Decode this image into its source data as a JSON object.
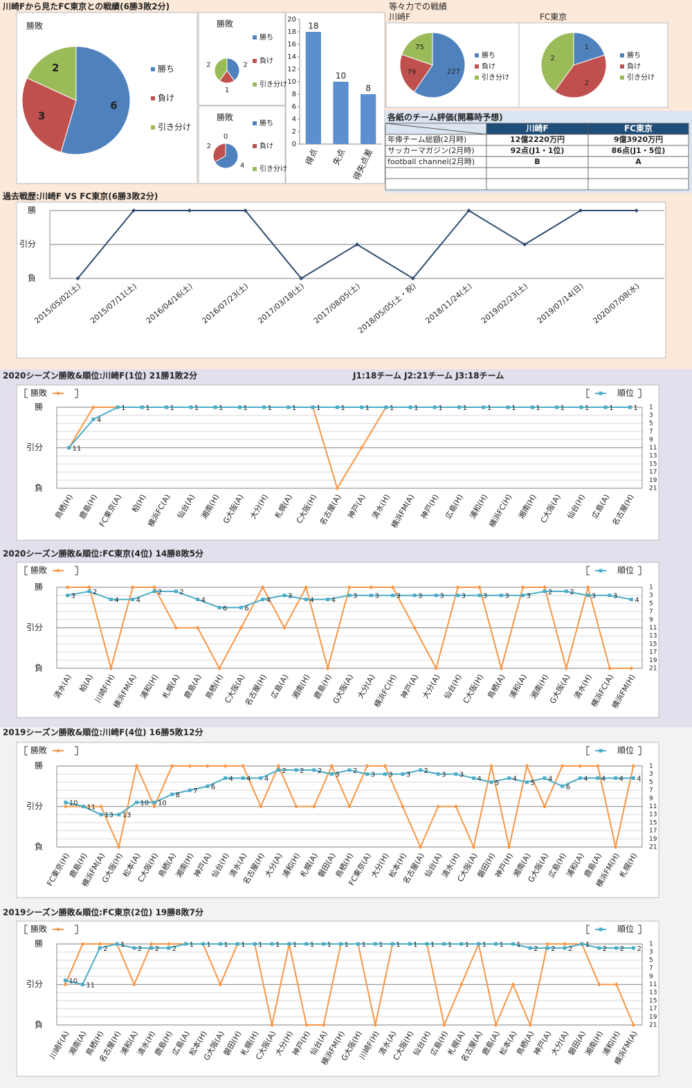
{
  "header": {
    "title": "川崎Fから見たFC東京との戦績(6勝3敗2分)"
  },
  "table": {
    "title": "各紙のチーム評価(開幕時予想)",
    "columns": [
      "川崎F",
      "FC東京"
    ],
    "rows": [
      {
        "label": "年俸チーム総額(2月時)",
        "cells": [
          "12億2220万円",
          "9億3920万円"
        ]
      },
      {
        "label": "サッカーマガジン(2月時)",
        "cells": [
          "92点(J1・1位)",
          "86点(J1・5位)"
        ]
      },
      {
        "label": "football channel(2月時)",
        "cells": [
          "B",
          "A"
        ]
      }
    ]
  },
  "chart_data": [
    {
      "type": "pie",
      "title": "勝敗",
      "categories": [
        "勝ち",
        "負け",
        "引き分け"
      ],
      "values": [
        6,
        3,
        2
      ],
      "colors": [
        "#4f81bd",
        "#c0504d",
        "#9bbb59"
      ]
    },
    {
      "type": "pie",
      "title": "勝敗",
      "categories": [
        "勝ち",
        "負け",
        "引き分け"
      ],
      "values": [
        2,
        1,
        2
      ],
      "colors": [
        "#4f81bd",
        "#c0504d",
        "#9bbb59"
      ]
    },
    {
      "type": "pie",
      "title": "勝敗",
      "categories": [
        "勝ち",
        "負け",
        "引き分け"
      ],
      "values": [
        4,
        2,
        0
      ],
      "colors": [
        "#4f81bd",
        "#c0504d",
        "#9bbb59"
      ]
    },
    {
      "type": "bar",
      "categories": [
        "得点",
        "失点",
        "得失点差"
      ],
      "values": [
        18,
        10,
        8
      ],
      "color": "#5b8fd0",
      "ylim": [
        0,
        20
      ],
      "yticks": [
        0,
        2,
        4,
        6,
        8,
        10,
        12,
        14,
        16,
        18,
        20
      ],
      "grid": false
    },
    {
      "type": "pie",
      "title": "等々力での戦績",
      "subtitle": "川崎F",
      "categories": [
        "勝ち",
        "負け",
        "引き分け"
      ],
      "values": [
        227,
        79,
        75
      ],
      "colors": [
        "#4f81bd",
        "#c0504d",
        "#9bbb59"
      ]
    },
    {
      "type": "pie",
      "subtitle": "FC東京",
      "categories": [
        "勝ち",
        "負け",
        "引き分け"
      ],
      "values": [
        1,
        2,
        2
      ],
      "colors": [
        "#4f81bd",
        "#c0504d",
        "#9bbb59"
      ]
    },
    {
      "type": "line",
      "title": "過去戦歴:川崎F VS FC東京(6勝3敗2分)",
      "categories": [
        "2015/05/02(土)",
        "2015/07/11(土)",
        "2016/04/16(土)",
        "2016/07/23(土)",
        "2017/03/18(土)",
        "2017/08/05(土)",
        "2018/05/05(土・祝)",
        "2018/11/24(土)",
        "2019/02/23(土)",
        "2019/07/14(日)",
        "2020/07/08(水)"
      ],
      "series": [
        {
          "color": "#2f4b6e",
          "values": [
            -1,
            1,
            1,
            1,
            -1,
            0,
            -1,
            1,
            0,
            1,
            1
          ]
        }
      ],
      "ylim": [
        -1,
        1
      ],
      "yticks": [
        {
          "value": -1,
          "label": "負"
        },
        {
          "value": 0,
          "label": "引分"
        },
        {
          "value": 1,
          "label": "勝"
        }
      ],
      "grid": true
    },
    {
      "type": "line",
      "title": "2020シーズン勝敗&順位:川崎F(1位) 21勝1敗2分",
      "annotation": "J1:18チーム J2:21チーム J3:18チーム",
      "categories": [
        "鳥栖(H)",
        "鹿島(H)",
        "FC東京(A)",
        "柏(H)",
        "横浜FC(A)",
        "仙台(A)",
        "湘南(H)",
        "G大阪(A)",
        "大分(H)",
        "札幌(A)",
        "C大阪(H)",
        "名古屋(A)",
        "神戸(A)",
        "清水(H)",
        "横浜FM(A)",
        "神戸(H)",
        "広島(H)",
        "浦和(H)",
        "横浜FC(H)",
        "湘南(H)",
        "C大阪(A)",
        "仙台(H)",
        "広島(A)",
        "名古屋(H)"
      ],
      "series": [
        {
          "name": "勝敗",
          "color": "#f79646",
          "values": [
            0,
            1,
            1,
            1,
            1,
            1,
            1,
            1,
            1,
            1,
            1,
            -1,
            0,
            1,
            1,
            1,
            1,
            1,
            1,
            1,
            1,
            1,
            1,
            1
          ]
        },
        {
          "name": "順位",
          "color": "#4bacc6",
          "axis": "y2",
          "values": [
            11,
            4,
            1,
            1,
            1,
            1,
            1,
            1,
            1,
            1,
            1,
            1,
            1,
            1,
            1,
            1,
            1,
            1,
            1,
            1,
            1,
            1,
            1,
            1
          ]
        }
      ],
      "ylim": [
        -1,
        1
      ],
      "yticks": [
        {
          "value": -1,
          "label": "負"
        },
        {
          "value": 0,
          "label": "引分"
        },
        {
          "value": 1,
          "label": "勝"
        }
      ],
      "y2lim": [
        21,
        1
      ],
      "y2ticks": [
        1,
        3,
        5,
        7,
        9,
        11,
        13,
        15,
        17,
        19,
        21
      ],
      "grid": true
    },
    {
      "type": "line",
      "title": "2020シーズン勝敗&順位:FC東京(4位) 14勝8敗5分",
      "categories": [
        "清水(A)",
        "柏(A)",
        "川崎F(H)",
        "横浜FM(A)",
        "浦和(H)",
        "札幌(A)",
        "鹿島(A)",
        "鳥栖(H)",
        "C大阪(A)",
        "名古屋(H)",
        "広島(A)",
        "湘南(H)",
        "鹿島(H)",
        "G大阪(A)",
        "大分(A)",
        "横浜FC(H)",
        "神戸(A)",
        "大分(A)",
        "仙台(H)",
        "C大阪(H)",
        "鳥栖(A)",
        "浦和(A)",
        "湘南(H)",
        "G大阪(A)",
        "清水(H)",
        "横浜FC(A)",
        "横浜FM(H)"
      ],
      "series": [
        {
          "name": "勝敗",
          "color": "#f79646",
          "values": [
            1,
            1,
            -1,
            1,
            1,
            0,
            0,
            -1,
            0,
            1,
            0,
            1,
            -1,
            1,
            1,
            1,
            0,
            -1,
            1,
            1,
            -1,
            1,
            1,
            -1,
            1,
            -1,
            -1
          ]
        },
        {
          "name": "順位",
          "color": "#4bacc6",
          "axis": "y2",
          "values": [
            3,
            2,
            4,
            4,
            2,
            2,
            4,
            6,
            6,
            4,
            3,
            4,
            4,
            3,
            3,
            3,
            3,
            3,
            3,
            3,
            3,
            3,
            2,
            2,
            3,
            3,
            4
          ]
        }
      ],
      "ylim": [
        -1,
        1
      ],
      "yticks": [
        {
          "value": -1,
          "label": "負"
        },
        {
          "value": 0,
          "label": "引分"
        },
        {
          "value": 1,
          "label": "勝"
        }
      ],
      "y2lim": [
        21,
        1
      ],
      "y2ticks": [
        1,
        3,
        5,
        7,
        9,
        11,
        13,
        15,
        17,
        19,
        21
      ],
      "grid": true
    },
    {
      "type": "line",
      "title": "2019シーズン勝敗&順位:川崎F(4位) 16勝5敗12分",
      "categories": [
        "FC東京(H)",
        "鹿島(H)",
        "横浜FM(A)",
        "G大阪(H)",
        "松本(A)",
        "C大阪(H)",
        "鳥栖(A)",
        "湘南(H)",
        "神戸(A)",
        "仙台(H)",
        "清水(A)",
        "名古屋(H)",
        "大分(A)",
        "浦和(H)",
        "札幌(A)",
        "磐田(A)",
        "鳥栖(H)",
        "FC東京(A)",
        "大分(H)",
        "松本(H)",
        "名古屋(A)",
        "仙台(A)",
        "清水(H)",
        "C大阪(A)",
        "磐田(H)",
        "神戸(H)",
        "湘南(A)",
        "G大阪(A)",
        "広島(H)",
        "浦和(A)",
        "鹿島(A)",
        "横浜FM(H)",
        "札幌(H)"
      ],
      "series": [
        {
          "name": "勝敗",
          "color": "#f79646",
          "values": [
            0,
            0,
            0,
            -1,
            1,
            0,
            1,
            1,
            1,
            1,
            1,
            0,
            1,
            0,
            0,
            1,
            0,
            1,
            1,
            0,
            -1,
            0,
            0,
            -1,
            1,
            -1,
            1,
            0,
            1,
            1,
            1,
            -1,
            1
          ]
        },
        {
          "name": "順位",
          "color": "#4bacc6",
          "axis": "y2",
          "values": [
            10,
            11,
            13,
            13,
            10,
            10,
            8,
            7,
            6,
            4,
            4,
            4,
            2,
            2,
            2,
            3,
            2,
            3,
            3,
            3,
            2,
            3,
            3,
            4,
            5,
            4,
            5,
            4,
            6,
            4,
            4,
            4,
            4
          ]
        }
      ],
      "ylim": [
        -1,
        1
      ],
      "yticks": [
        {
          "value": -1,
          "label": "負"
        },
        {
          "value": 0,
          "label": "引分"
        },
        {
          "value": 1,
          "label": "勝"
        }
      ],
      "y2lim": [
        21,
        1
      ],
      "y2ticks": [
        1,
        3,
        5,
        7,
        9,
        11,
        13,
        15,
        17,
        19,
        21
      ],
      "grid": true
    },
    {
      "type": "line",
      "title": "2019シーズン勝敗&順位:FC東京(2位) 19勝8敗7分",
      "categories": [
        "川崎F(A)",
        "湘南(A)",
        "鳥栖(H)",
        "名古屋(H)",
        "浦和(A)",
        "清水(H)",
        "鹿島(H)",
        "広島(A)",
        "松本(H)",
        "G大阪(A)",
        "磐田(H)",
        "札幌(H)",
        "C大阪(A)",
        "大分(H)",
        "神戸(H)",
        "仙台(A)",
        "横浜FM(H)",
        "G大阪(H)",
        "川崎F(H)",
        "清水(A)",
        "C大阪(H)",
        "仙台(H)",
        "広島(H)",
        "札幌(A)",
        "名古屋(A)",
        "鹿島(A)",
        "松本(A)",
        "鳥栖(A)",
        "神戸(A)",
        "大分(A)",
        "磐田(A)",
        "湘南(H)",
        "浦和(H)",
        "横浜FM(A)"
      ],
      "series": [
        {
          "name": "勝敗",
          "color": "#f79646",
          "values": [
            0,
            1,
            1,
            1,
            0,
            1,
            1,
            1,
            1,
            0,
            1,
            1,
            -1,
            1,
            -1,
            -1,
            1,
            1,
            -1,
            1,
            1,
            1,
            -1,
            0,
            1,
            -1,
            0,
            -1,
            1,
            1,
            1,
            0,
            0,
            -1
          ]
        },
        {
          "name": "順位",
          "color": "#4bacc6",
          "axis": "y2",
          "values": [
            10,
            11,
            2,
            1,
            2,
            2,
            2,
            1,
            1,
            1,
            1,
            1,
            1,
            1,
            1,
            1,
            1,
            1,
            1,
            1,
            1,
            1,
            1,
            1,
            1,
            1,
            1,
            2,
            2,
            2,
            1,
            2,
            2,
            2
          ]
        }
      ],
      "ylim": [
        -1,
        1
      ],
      "yticks": [
        {
          "value": -1,
          "label": "負"
        },
        {
          "value": 0,
          "label": "引分"
        },
        {
          "value": 1,
          "label": "勝"
        }
      ],
      "y2lim": [
        21,
        1
      ],
      "y2ticks": [
        1,
        3,
        5,
        7,
        9,
        11,
        13,
        15,
        17,
        19,
        21
      ],
      "grid": true
    }
  ]
}
